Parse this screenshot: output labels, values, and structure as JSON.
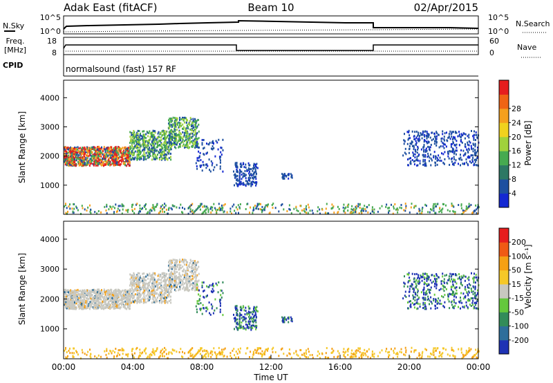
{
  "header": {
    "radar": "Adak East (fitACF)",
    "beam": "Beam 10",
    "date": "02/Apr/2015"
  },
  "nsky_panel": {
    "left_label": "N.Sky",
    "right_label": "N.Search",
    "left_ticks": [
      "10^5",
      "10^0"
    ],
    "right_ticks": [
      "10^5",
      "10^0"
    ]
  },
  "freq_panel": {
    "left_label_line1": "Freq.",
    "left_label_line2": "[MHz]",
    "right_label": "Nave",
    "left_ticks": [
      "18",
      "8"
    ],
    "right_ticks": [
      "60",
      "0"
    ]
  },
  "cpid_panel": {
    "label": "CPID",
    "text": "normalsound (fast) 157 RF"
  },
  "chart_data": [
    {
      "type": "heatmap",
      "name": "power",
      "ylabel": "Slant Range [km]",
      "xlabel": "",
      "ylim": [
        0,
        4600
      ],
      "y_ticks": [
        "1000",
        "2000",
        "3000",
        "4000"
      ],
      "x_hours": [
        0,
        24
      ],
      "colorbar": {
        "label": "Power [dB]",
        "tick_labels": [
          "4",
          "8",
          "12",
          "16",
          "20",
          "24",
          "28"
        ],
        "colors": [
          "#1428d2",
          "#1e50a0",
          "#2d7864",
          "#46aa50",
          "#a0d23c",
          "#f0d21e",
          "#f5a01e",
          "#f06414",
          "#e61e1e"
        ]
      }
    },
    {
      "type": "heatmap",
      "name": "velocity",
      "ylabel": "Slant Range [km]",
      "xlabel": "Time UT",
      "ylim": [
        0,
        4600
      ],
      "y_ticks": [
        "1000",
        "2000",
        "3000",
        "4000"
      ],
      "x_tick_labels": [
        "00:00",
        "04:00",
        "08:00",
        "12:00",
        "16:00",
        "20:00",
        "00:00"
      ],
      "x_hours": [
        0,
        24
      ],
      "colorbar": {
        "label": "Velocity [m s⁻¹]",
        "tick_labels": [
          "200",
          "100",
          "50",
          "15",
          "-15",
          "-50",
          "-100",
          "-200"
        ],
        "colors": [
          "#1e32b4",
          "#2d6e9b",
          "#328c5a",
          "#64c83c",
          "#c8c8c0",
          "#f5c828",
          "#f5a014",
          "#f05a14",
          "#e61e1e"
        ]
      }
    }
  ]
}
